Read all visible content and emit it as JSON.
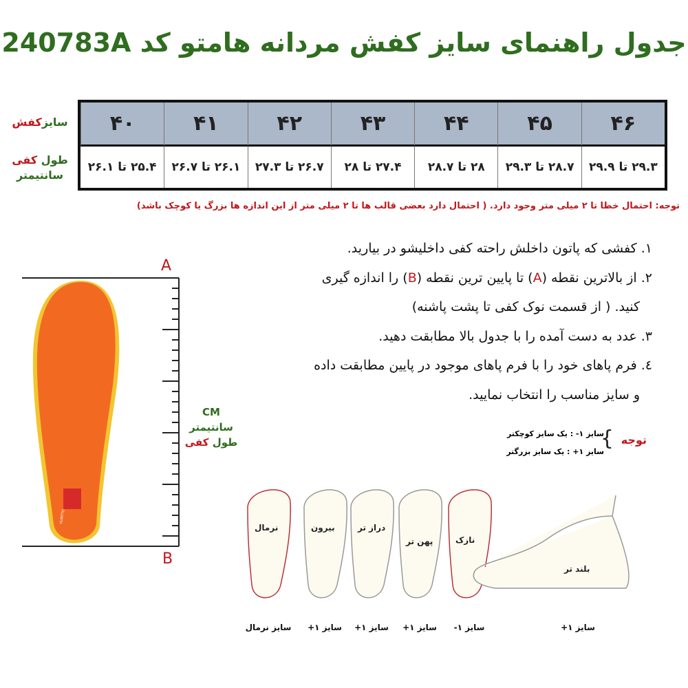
{
  "title": "جدول راهنمای سایز کفش مردانه هامتو کد 240783A",
  "table": {
    "row_label_size": {
      "part1": "سایز",
      "part2": "کفش"
    },
    "row_label_length": {
      "part1": "طول",
      "part2": "کفی",
      "part3": "سانتیمتر"
    },
    "sizes": [
      "۴۶",
      "۴۵",
      "۴۴",
      "۴۳",
      "۴۲",
      "۴۱",
      "۴۰"
    ],
    "lengths": [
      "۲۹.۳ تا ۲۹.۹",
      "۲۸.۷ تا ۲۹.۳",
      "۲۸ تا ۲۸.۷",
      "۲۷.۴ تا ۲۸",
      "۲۶.۷ تا ۲۷.۳",
      "۲۶.۱ تا ۲۶.۷",
      "۲۵.۴ تا ۲۶.۱"
    ]
  },
  "note": "توجه: احتمال خطا تا ۲ میلی متر وجود دارد. ( احتمال دارد بعضی قالب ها تا ۲ میلی متر از این اندازه ها بزرگ یا کوچک باشد)",
  "steps": {
    "s1": "۱. کفشی که پاتون داخلش راحته کفی داخلیشو در بیارید.",
    "s2a": "۲. از بالاترین نقطه (",
    "s2A": "A",
    "s2b": ") تا پایین ترین نقطه (",
    "s2B": "B",
    "s2c": ") را اندازه گیری",
    "s2d": "کنید. ( از قسمت نوک کفی تا پشت پاشنه)",
    "s3": "۳. عدد به دست آمده را با جدول بالا مطابقت دهید.",
    "s4a": "٤. فرم پاهای خود را با فرم پاهای موجود در پایین مطابقت داده",
    "s4b": "و سایز مناسب را انتخاب نمایید."
  },
  "insole": {
    "point_a": "A",
    "point_b": "B",
    "brand": "HUMTTO",
    "unit": "CM",
    "unit_fa": "سانتیمتر",
    "length_part1": "طول",
    "length_part2": "کفی",
    "insole_color": "#f26a21"
  },
  "legend": {
    "title": "توجه",
    "minus": "سایز ۱- :  یک سایز کوچکتر",
    "plus": "سایز ۱+ :  یک سایز بزرگتر"
  },
  "feet": [
    {
      "type": "نرمال",
      "size": "سایز نرمال",
      "color": "#b8323a"
    },
    {
      "type": "بیرون",
      "size": "سایز ۱+",
      "color": "#999999"
    },
    {
      "type": "دراز تر",
      "size": "سایز ۱+",
      "color": "#999999"
    },
    {
      "type": "پهن تر",
      "size": "سایز ۱+",
      "color": "#999999"
    },
    {
      "type": "نازک",
      "size": "سایز ۱-",
      "color": "#b8323a"
    },
    {
      "type": "بلند تر",
      "size": "سایز ۱+",
      "color": "#999999"
    }
  ]
}
